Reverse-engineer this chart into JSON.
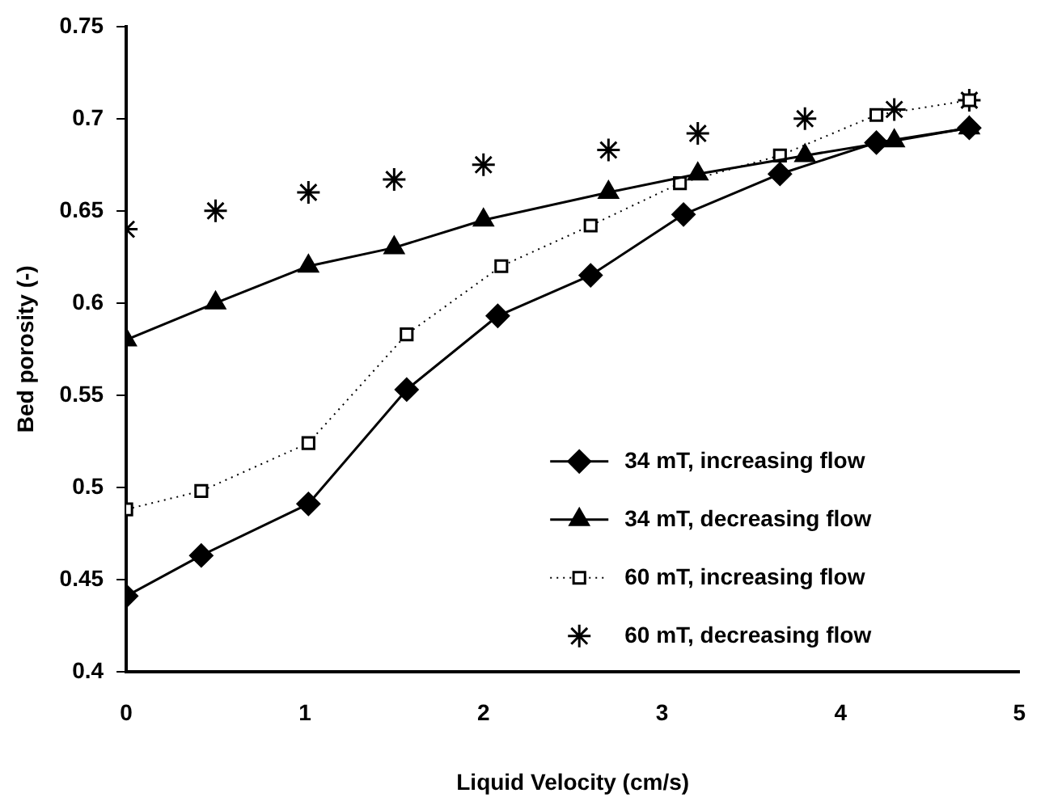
{
  "chart_data": {
    "type": "line",
    "xlabel": "Liquid Velocity (cm/s)",
    "ylabel": "Bed porosity (-)",
    "xlim": [
      0,
      5
    ],
    "xticks": [
      0,
      1,
      2,
      3,
      4,
      5
    ],
    "ylim": [
      0.4,
      0.75
    ],
    "yticks": [
      0.4,
      0.45,
      0.5,
      0.55,
      0.6,
      0.65,
      0.7,
      0.75
    ],
    "grid": false,
    "legend": "bottom right",
    "series": [
      {
        "name": "34 mT, increasing flow",
        "color": "#000000",
        "marker": "diamond",
        "line_style": "solid",
        "x": [
          0,
          0.42,
          1.02,
          1.57,
          2.08,
          2.6,
          3.12,
          3.66,
          4.2,
          4.72
        ],
        "values": [
          0.441,
          0.463,
          0.491,
          0.553,
          0.593,
          0.615,
          0.648,
          0.67,
          0.687,
          0.695
        ]
      },
      {
        "name": "34 mT, decreasing flow",
        "color": "#000000",
        "marker": "triangle",
        "line_style": "solid",
        "x": [
          0,
          0.5,
          1.02,
          1.5,
          2.0,
          2.7,
          3.2,
          3.8,
          4.3,
          4.72
        ],
        "values": [
          0.58,
          0.6,
          0.62,
          0.63,
          0.645,
          0.66,
          0.67,
          0.68,
          0.688,
          0.695
        ]
      },
      {
        "name": "60 mT, increasing flow",
        "color": "#000000",
        "marker": "square",
        "line_style": "dotted",
        "x": [
          0,
          0.42,
          1.02,
          1.57,
          2.1,
          2.6,
          3.1,
          3.66,
          4.2,
          4.72
        ],
        "values": [
          0.488,
          0.498,
          0.524,
          0.583,
          0.62,
          0.642,
          0.665,
          0.68,
          0.702,
          0.71
        ]
      },
      {
        "name": "60 mT, decreasing flow",
        "type": "scatter",
        "color": "#000000",
        "marker": "cross",
        "x": [
          0,
          0.5,
          1.02,
          1.5,
          2.0,
          2.7,
          3.2,
          3.8,
          4.3,
          4.72
        ],
        "values": [
          0.64,
          0.65,
          0.66,
          0.667,
          0.675,
          0.683,
          0.692,
          0.7,
          0.705,
          0.71
        ]
      }
    ]
  }
}
